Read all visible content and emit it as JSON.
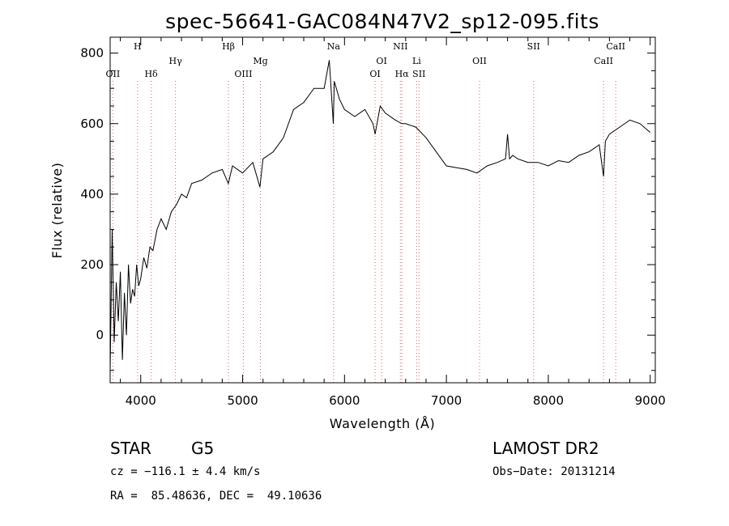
{
  "chart_data": {
    "type": "line",
    "title": "spec-56641-GAC084N47V2_sp12-095.fits",
    "xlabel": "Wavelength (Å)",
    "ylabel": "Flux (relative)",
    "xlim": [
      3700,
      9050
    ],
    "ylim": [
      -135,
      845
    ],
    "xticks": [
      4000,
      5000,
      6000,
      7000,
      8000,
      9000
    ],
    "yticks": [
      0,
      200,
      400,
      600,
      800
    ],
    "grid": false,
    "series": [
      {
        "color": "#000000",
        "x": [
          3700,
          3720,
          3740,
          3760,
          3780,
          3800,
          3820,
          3840,
          3860,
          3880,
          3900,
          3920,
          3940,
          3960,
          3980,
          4000,
          4030,
          4060,
          4090,
          4120,
          4160,
          4200,
          4250,
          4300,
          4350,
          4400,
          4450,
          4500,
          4600,
          4700,
          4800,
          4860,
          4900,
          5000,
          5100,
          5170,
          5200,
          5300,
          5400,
          5500,
          5600,
          5700,
          5800,
          5850,
          5890,
          5900,
          5950,
          6000,
          6100,
          6200,
          6280,
          6300,
          6350,
          6400,
          6500,
          6563,
          6600,
          6700,
          6800,
          6900,
          7000,
          7100,
          7200,
          7300,
          7400,
          7500,
          7580,
          7600,
          7620,
          7650,
          7700,
          7800,
          7900,
          8000,
          8100,
          8200,
          8300,
          8400,
          8450,
          8500,
          8542,
          8560,
          8600,
          8700,
          8800,
          8900,
          9000
        ],
        "y": [
          -100,
          300,
          -20,
          150,
          40,
          180,
          -70,
          120,
          0,
          200,
          90,
          130,
          110,
          200,
          140,
          160,
          220,
          190,
          250,
          240,
          300,
          330,
          300,
          350,
          370,
          400,
          390,
          430,
          440,
          460,
          470,
          430,
          480,
          460,
          490,
          420,
          500,
          520,
          560,
          640,
          660,
          700,
          700,
          780,
          600,
          720,
          670,
          640,
          620,
          640,
          600,
          570,
          650,
          630,
          610,
          600,
          600,
          590,
          560,
          520,
          480,
          475,
          470,
          460,
          480,
          490,
          500,
          570,
          500,
          510,
          500,
          490,
          490,
          480,
          495,
          490,
          510,
          520,
          530,
          540,
          450,
          550,
          570,
          590,
          610,
          600,
          575
        ]
      }
    ],
    "line_markers": [
      {
        "label": "OII",
        "x": 3727,
        "row": 1
      },
      {
        "label": "H",
        "x": 3969,
        "row": 0
      },
      {
        "label": "Hδ",
        "x": 4102,
        "row": 1
      },
      {
        "label": "Hγ",
        "x": 4341,
        "row": 2
      },
      {
        "label": "Hβ",
        "x": 4861,
        "row": 0
      },
      {
        "label": "OIII",
        "x": 5007,
        "row": 1
      },
      {
        "label": "Mg",
        "x": 5175,
        "row": 2
      },
      {
        "label": "Na",
        "x": 5893,
        "row": 0
      },
      {
        "label": "OI",
        "x": 6300,
        "row": 1
      },
      {
        "label": "OI",
        "x": 6364,
        "row": 2
      },
      {
        "label": "NII",
        "x": 6548,
        "row": 0
      },
      {
        "label": "Hα",
        "x": 6563,
        "row": 1
      },
      {
        "label": "Li",
        "x": 6708,
        "row": 2
      },
      {
        "label": "SII",
        "x": 6731,
        "row": 1
      },
      {
        "label": "OII",
        "x": 7325,
        "row": 2
      },
      {
        "label": "SII",
        "x": 7856,
        "row": 0
      },
      {
        "label": "CaII",
        "x": 8542,
        "row": 2
      },
      {
        "label": "CaII",
        "x": 8662,
        "row": 0
      }
    ],
    "marker_color": "#e06060"
  },
  "info": {
    "class_label": "STAR",
    "subclass_label": "G5",
    "survey": "LAMOST DR2",
    "cz": "cz = −116.1 ± 4.4 km/s",
    "obs_date": "Obs−Date: 20131214",
    "coords": "RA =  85.48636, DEC =  49.10636"
  }
}
